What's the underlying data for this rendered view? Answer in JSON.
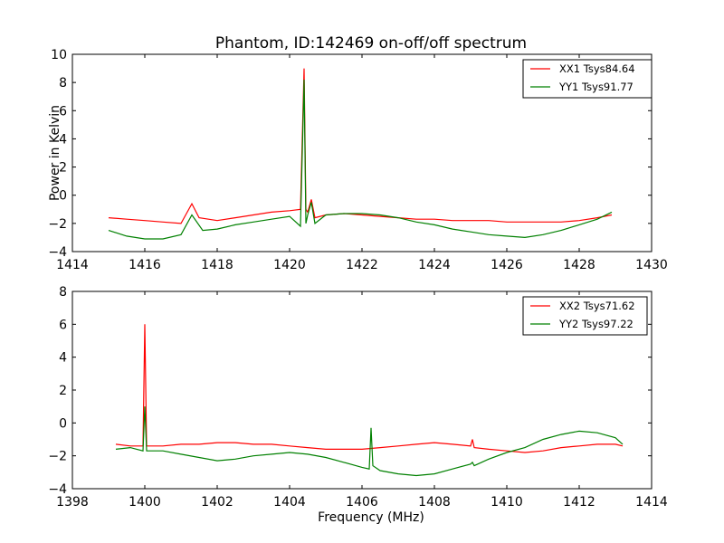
{
  "figure": {
    "title": "Phantom, ID:142469 on-off/off spectrum",
    "xlabel": "Frequency (MHz)",
    "ylabel": "Power in Kelvin"
  },
  "colors": {
    "xx": "#ff0000",
    "yy": "#008000"
  },
  "chart_data": [
    {
      "type": "line",
      "title": "Phantom, ID:142469 on-off/off spectrum",
      "xlabel": "",
      "ylabel": "Power in Kelvin",
      "xlim": [
        1414,
        1430
      ],
      "ylim": [
        -4,
        10
      ],
      "xticks": [
        "1414",
        "1416",
        "1418",
        "1420",
        "1422",
        "1424",
        "1426",
        "1428",
        "1430"
      ],
      "yticks": [
        "10",
        "8",
        "6",
        "4",
        "2",
        "0",
        "−2",
        "−4"
      ],
      "xtick_values": [
        1414,
        1416,
        1418,
        1420,
        1422,
        1424,
        1426,
        1428,
        1430
      ],
      "ytick_values": [
        10,
        8,
        6,
        4,
        2,
        0,
        -2,
        -4
      ],
      "grid": false,
      "legend_position": "top-right",
      "series": [
        {
          "name": "XX1 Tsys84.64",
          "color": "#ff0000",
          "x": [
            1415.0,
            1415.5,
            1416.0,
            1416.5,
            1417.0,
            1417.3,
            1417.5,
            1418.0,
            1418.5,
            1419.0,
            1419.5,
            1420.0,
            1420.3,
            1420.4,
            1420.45,
            1420.5,
            1420.6,
            1420.7,
            1421.0,
            1421.5,
            1422.0,
            1422.5,
            1423.0,
            1423.5,
            1424.0,
            1424.5,
            1425.0,
            1425.5,
            1426.0,
            1426.5,
            1427.0,
            1427.5,
            1428.0,
            1428.5,
            1428.9
          ],
          "y": [
            -1.6,
            -1.7,
            -1.8,
            -1.9,
            -2.0,
            -0.6,
            -1.6,
            -1.8,
            -1.6,
            -1.4,
            -1.2,
            -1.1,
            -1.0,
            9.0,
            -1.0,
            -1.2,
            -0.3,
            -1.6,
            -1.4,
            -1.3,
            -1.4,
            -1.5,
            -1.6,
            -1.7,
            -1.7,
            -1.8,
            -1.8,
            -1.8,
            -1.9,
            -1.9,
            -1.9,
            -1.9,
            -1.8,
            -1.6,
            -1.4
          ]
        },
        {
          "name": "YY1 Tsys91.77",
          "color": "#008000",
          "x": [
            1415.0,
            1415.5,
            1416.0,
            1416.5,
            1417.0,
            1417.3,
            1417.6,
            1418.0,
            1418.5,
            1419.0,
            1419.5,
            1420.0,
            1420.3,
            1420.4,
            1420.45,
            1420.5,
            1420.6,
            1420.7,
            1421.0,
            1421.5,
            1422.0,
            1422.5,
            1423.0,
            1423.5,
            1424.0,
            1424.5,
            1425.0,
            1425.5,
            1426.0,
            1426.5,
            1427.0,
            1427.5,
            1428.0,
            1428.5,
            1428.9
          ],
          "y": [
            -2.5,
            -2.9,
            -3.1,
            -3.1,
            -2.8,
            -1.4,
            -2.5,
            -2.4,
            -2.1,
            -1.9,
            -1.7,
            -1.5,
            -2.2,
            8.2,
            -2.0,
            -1.4,
            -0.5,
            -2.0,
            -1.4,
            -1.3,
            -1.3,
            -1.4,
            -1.6,
            -1.9,
            -2.1,
            -2.4,
            -2.6,
            -2.8,
            -2.9,
            -3.0,
            -2.8,
            -2.5,
            -2.1,
            -1.7,
            -1.2
          ]
        }
      ]
    },
    {
      "type": "line",
      "title": "",
      "xlabel": "Frequency (MHz)",
      "ylabel": "",
      "xlim": [
        1398,
        1414
      ],
      "ylim": [
        -4,
        8
      ],
      "xticks": [
        "1398",
        "1400",
        "1402",
        "1404",
        "1406",
        "1408",
        "1410",
        "1412",
        "1414"
      ],
      "yticks": [
        "8",
        "6",
        "4",
        "2",
        "0",
        "−2",
        "−4"
      ],
      "xtick_values": [
        1398,
        1400,
        1402,
        1404,
        1406,
        1408,
        1410,
        1412,
        1414
      ],
      "ytick_values": [
        8,
        6,
        4,
        2,
        0,
        -2,
        -4
      ],
      "grid": false,
      "legend_position": "top-right",
      "series": [
        {
          "name": "XX2 Tsys71.62",
          "color": "#ff0000",
          "x": [
            1399.2,
            1399.6,
            1399.95,
            1400.0,
            1400.05,
            1400.5,
            1401.0,
            1401.5,
            1402.0,
            1402.5,
            1403.0,
            1403.5,
            1404.0,
            1404.5,
            1405.0,
            1405.5,
            1406.0,
            1406.5,
            1407.0,
            1407.5,
            1408.0,
            1408.5,
            1409.0,
            1409.05,
            1409.1,
            1409.5,
            1410.0,
            1410.5,
            1411.0,
            1411.5,
            1412.0,
            1412.5,
            1413.0,
            1413.2
          ],
          "y": [
            -1.3,
            -1.4,
            -1.4,
            6.0,
            -1.4,
            -1.4,
            -1.3,
            -1.3,
            -1.2,
            -1.2,
            -1.3,
            -1.3,
            -1.4,
            -1.5,
            -1.6,
            -1.6,
            -1.6,
            -1.5,
            -1.4,
            -1.3,
            -1.2,
            -1.3,
            -1.4,
            -1.0,
            -1.5,
            -1.6,
            -1.7,
            -1.8,
            -1.7,
            -1.5,
            -1.4,
            -1.3,
            -1.3,
            -1.4
          ]
        },
        {
          "name": "YY2 Tsys97.22",
          "color": "#008000",
          "x": [
            1399.2,
            1399.6,
            1399.95,
            1400.0,
            1400.05,
            1400.5,
            1401.0,
            1401.5,
            1402.0,
            1402.5,
            1403.0,
            1403.5,
            1404.0,
            1404.5,
            1405.0,
            1405.5,
            1406.0,
            1406.2,
            1406.25,
            1406.3,
            1406.5,
            1407.0,
            1407.5,
            1408.0,
            1408.5,
            1409.0,
            1409.05,
            1409.1,
            1409.5,
            1410.0,
            1410.5,
            1411.0,
            1411.5,
            1412.0,
            1412.5,
            1413.0,
            1413.2
          ],
          "y": [
            -1.6,
            -1.5,
            -1.7,
            1.0,
            -1.7,
            -1.7,
            -1.9,
            -2.1,
            -2.3,
            -2.2,
            -2.0,
            -1.9,
            -1.8,
            -1.9,
            -2.1,
            -2.4,
            -2.7,
            -2.8,
            -0.3,
            -2.6,
            -2.9,
            -3.1,
            -3.2,
            -3.1,
            -2.8,
            -2.5,
            -2.4,
            -2.6,
            -2.2,
            -1.8,
            -1.5,
            -1.0,
            -0.7,
            -0.5,
            -0.6,
            -0.9,
            -1.3
          ]
        }
      ]
    }
  ]
}
